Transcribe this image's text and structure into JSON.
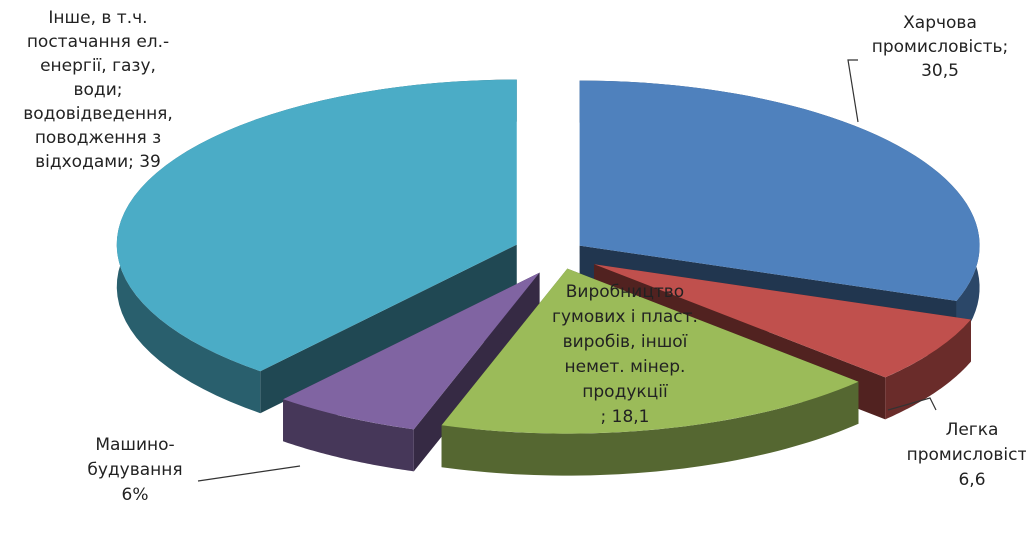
{
  "chart_data": {
    "type": "pie",
    "variant": "3d-exploded",
    "title": "",
    "legend": "none",
    "slices": [
      {
        "key": "food",
        "value": 30.5,
        "color": "#4f81bd",
        "label_lines": [
          "Харчова",
          "промисловість;",
          "30,5"
        ]
      },
      {
        "key": "light",
        "value": 6.6,
        "color": "#c0504d",
        "label_lines": [
          "Легка",
          "промисловість",
          "6,6"
        ]
      },
      {
        "key": "rubber",
        "value": 18.1,
        "color": "#9bbb59",
        "label_lines": [
          "Виробництво",
          "гумових і пласт.",
          "виробів, іншої",
          "немет. мінер.",
          "продукції",
          "; 18,1"
        ]
      },
      {
        "key": "machine",
        "value": 6,
        "color": "#8064a2",
        "label_lines": [
          "Машино-",
          "будування",
          "6%"
        ]
      },
      {
        "key": "other",
        "value": 39,
        "color": "#4bacc6",
        "label_lines": [
          "Інше, в т.ч.",
          "постачання ел.-",
          "енергії, газу,",
          "води;",
          "водовідведення,",
          "поводження з",
          "відходами; 39"
        ]
      }
    ]
  }
}
